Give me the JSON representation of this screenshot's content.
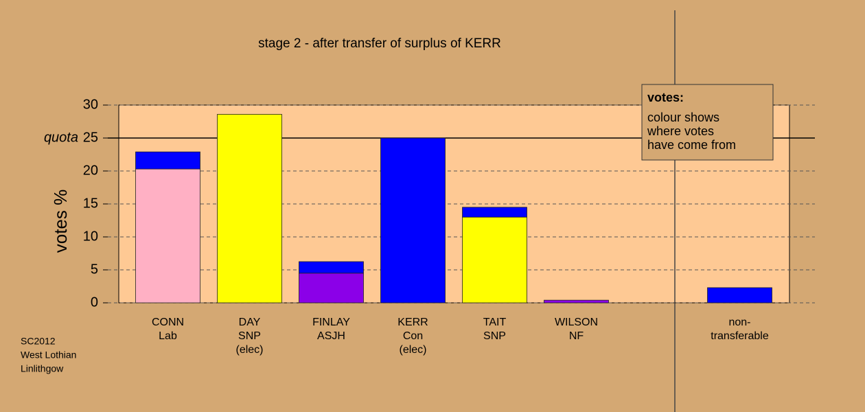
{
  "chart_data": {
    "type": "bar",
    "title": "stage 2 - after transfer of surplus of KERR",
    "y_label": "votes %",
    "categories": [
      [
        "CONN",
        "Lab"
      ],
      [
        "DAY",
        "SNP",
        "(elec)"
      ],
      [
        "FINLAY",
        "ASJH"
      ],
      [
        "KERR",
        "Con",
        "(elec)"
      ],
      [
        "TAIT",
        "SNP"
      ],
      [
        "WILSON",
        "NF"
      ],
      null,
      [
        "non-",
        "transferable"
      ]
    ],
    "series": [
      {
        "colors": [
          "#ffb0c4",
          "#ffff00",
          "#8b00e8",
          "#0000ff",
          "#ffff00",
          "#8b00e8",
          null,
          "#0000ff"
        ],
        "values": [
          20.3,
          28.6,
          4.5,
          25,
          13,
          0.4,
          null,
          2.3
        ]
      },
      {
        "color": "#0000ff",
        "values": [
          2.6,
          null,
          1.75,
          null,
          1.5,
          null,
          null,
          null
        ]
      }
    ],
    "ylim": [
      0,
      30
    ],
    "yticks": [
      0,
      5,
      10,
      15,
      20,
      25,
      30
    ],
    "grid": true,
    "quota": {
      "label": "quota",
      "value": 25
    },
    "legend": {
      "title": "votes:",
      "lines": [
        "colour shows",
        "where votes",
        "have come from"
      ]
    },
    "footer": [
      "SC2012",
      "West Lothian",
      "Linlithgow"
    ]
  }
}
